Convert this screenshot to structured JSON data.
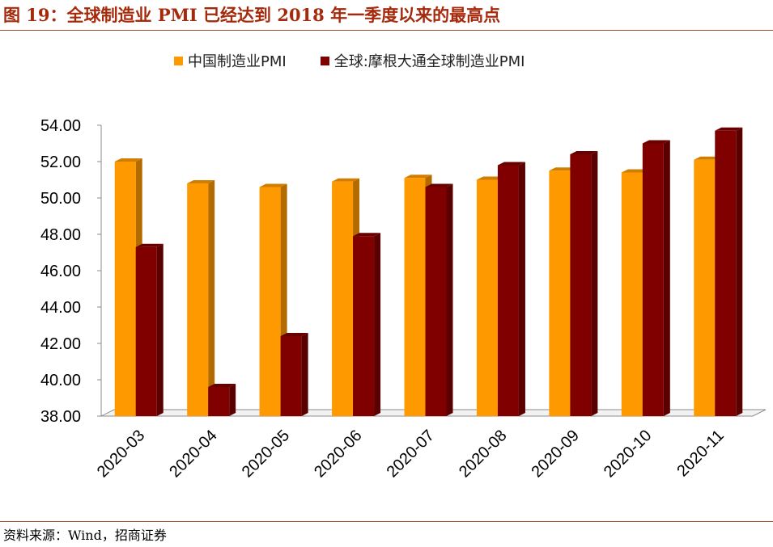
{
  "figure": {
    "title": "图 19：全球制造业 PMI 已经达到 2018 年一季度以来的最高点",
    "source": "资料来源：Wind，招商证券"
  },
  "chart_data": {
    "type": "bar",
    "categories": [
      "2020-03",
      "2020-04",
      "2020-05",
      "2020-06",
      "2020-07",
      "2020-08",
      "2020-09",
      "2020-10",
      "2020-11"
    ],
    "series": [
      {
        "name": "中国制造业PMI",
        "color": "#FF9900",
        "values": [
          52.0,
          50.8,
          50.6,
          50.9,
          51.1,
          51.0,
          51.5,
          51.4,
          52.1
        ]
      },
      {
        "name": "全球:摩根大通全球制造业PMI",
        "color": "#800000",
        "values": [
          47.3,
          39.6,
          42.4,
          47.9,
          50.6,
          51.8,
          52.4,
          53.0,
          53.7
        ]
      }
    ],
    "ylim": [
      38,
      54
    ],
    "yticks": [
      "38.00",
      "40.00",
      "42.00",
      "44.00",
      "46.00",
      "48.00",
      "50.00",
      "52.00",
      "54.00"
    ],
    "xlabel": "",
    "ylabel": "",
    "legend_position": "top-center",
    "grid": false
  }
}
